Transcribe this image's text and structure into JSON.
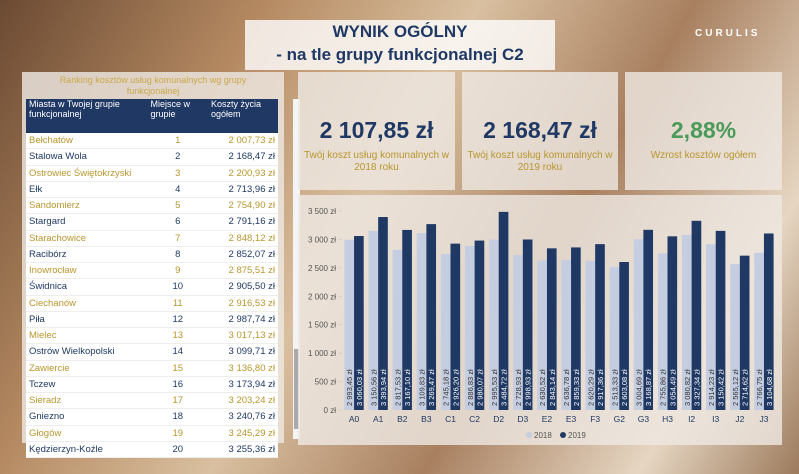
{
  "header": {
    "title": "WYNIK OGÓLNY",
    "subtitle": "- na tle grupy funkcjonalnej C2",
    "logo": "CURULIS"
  },
  "table": {
    "caption": "Ranking kosztów usług komunalnych wg grupy funkcjonalnej",
    "columns": [
      "Miasta w Twojej grupie funkcjonalnej",
      "Miejsce w grupie",
      "Koszty życia ogółem"
    ],
    "rows": [
      [
        "Bełchatów",
        "1",
        "2 007,73 zł"
      ],
      [
        "Stalowa Wola",
        "2",
        "2 168,47 zł"
      ],
      [
        "Ostrowiec Świętokrzyski",
        "3",
        "2 200,93 zł"
      ],
      [
        "Ełk",
        "4",
        "2 713,96 zł"
      ],
      [
        "Sandomierz",
        "5",
        "2 754,90 zł"
      ],
      [
        "Stargard",
        "6",
        "2 791,16 zł"
      ],
      [
        "Starachowice",
        "7",
        "2 848,12 zł"
      ],
      [
        "Racibórz",
        "8",
        "2 852,07 zł"
      ],
      [
        "Inowrocław",
        "9",
        "2 875,51 zł"
      ],
      [
        "Świdnica",
        "10",
        "2 905,50 zł"
      ],
      [
        "Ciechanów",
        "11",
        "2 916,53 zł"
      ],
      [
        "Piła",
        "12",
        "2 987,74 zł"
      ],
      [
        "Mielec",
        "13",
        "3 017,13 zł"
      ],
      [
        "Ostrów Wielkopolski",
        "14",
        "3 099,71 zł"
      ],
      [
        "Zawiercie",
        "15",
        "3 136,80 zł"
      ],
      [
        "Tczew",
        "16",
        "3 173,94 zł"
      ],
      [
        "Sieradz",
        "17",
        "3 203,24 zł"
      ],
      [
        "Gniezno",
        "18",
        "3 240,76 zł"
      ],
      [
        "Głogów",
        "19",
        "3 245,29 zł"
      ],
      [
        "Kędzierzyn-Koźle",
        "20",
        "3 255,36 zł"
      ]
    ]
  },
  "kpis": [
    {
      "value": "2 107,85 zł",
      "label": "Twój koszt usług komunalnych w 2018 roku"
    },
    {
      "value": "2 168,47 zł",
      "label": "Twój koszt usług komunalnych w 2019 roku"
    },
    {
      "value": "2,88%",
      "label": "Wzrost kosztów ogółem"
    }
  ],
  "chart_data": {
    "type": "bar",
    "categories": [
      "A0",
      "A1",
      "B2",
      "B3",
      "C1",
      "C2",
      "D2",
      "D3",
      "E2",
      "E3",
      "F3",
      "G2",
      "G3",
      "H3",
      "I2",
      "I3",
      "J2",
      "J3"
    ],
    "series": [
      {
        "name": "2018",
        "color": "#c5cde0",
        "values": [
          2993.45,
          3150.56,
          2817.53,
          3109.83,
          2745.18,
          2886.83,
          2995.53,
          2728.93,
          2630.52,
          2636.78,
          2620.29,
          2513.33,
          3004.69,
          2755.86,
          3080.82,
          2914.23,
          2565.12,
          2766.75
        ],
        "value_labels": [
          "2 993,45 zł",
          "3 150,56 zł",
          "2 817,53 zł",
          "3 109,83 zł",
          "2 745,18 zł",
          "2 886,83 zł",
          "2 995,53 zł",
          "2 728,93 zł",
          "2 630,52 zł",
          "2 636,78 zł",
          "2 620,29 zł",
          "2 513,33 zł",
          "3 004,69 zł",
          "2 755,86 zł",
          "3 080,82 zł",
          "2 914,23 zł",
          "2 565,12 zł",
          "2 766,75 zł"
        ]
      },
      {
        "name": "2019",
        "color": "#1f3864",
        "values": [
          3060.03,
          3393.94,
          3167.1,
          3269.47,
          2926.2,
          2980.07,
          3484.72,
          2998.93,
          2843.14,
          2859.33,
          2917.36,
          2603.08,
          3168.87,
          3054.49,
          3327.34,
          3150.42,
          2714.62,
          3104.68
        ],
        "value_labels": [
          "3 060,03 zł",
          "3 393,94 zł",
          "3 167,10 zł",
          "3 269,47 zł",
          "2 926,20 zł",
          "2 980,07 zł",
          "3 484,72 zł",
          "2 998,93 zł",
          "2 843,14 zł",
          "2 859,33 zł",
          "2 917,36 zł",
          "2 603,08 zł",
          "3 168,87 zł",
          "3 054,49 zł",
          "3 327,34 zł",
          "3 150,42 zł",
          "2 714,62 zł",
          "3 104,68 zł"
        ]
      }
    ],
    "ylim": [
      0,
      3500
    ],
    "yticks": [
      {
        "value": 0,
        "label": "0 zł"
      },
      {
        "value": 500,
        "label": "500 zł"
      },
      {
        "value": 1000,
        "label": "1 000 zł"
      },
      {
        "value": 1500,
        "label": "1 500 zł"
      },
      {
        "value": 2000,
        "label": "2 000 zł"
      },
      {
        "value": 2500,
        "label": "2 500 zł"
      },
      {
        "value": 3000,
        "label": "3 000 zł"
      },
      {
        "value": 3500,
        "label": "3 500 zł"
      }
    ],
    "grid": false,
    "legend": "bottom"
  }
}
